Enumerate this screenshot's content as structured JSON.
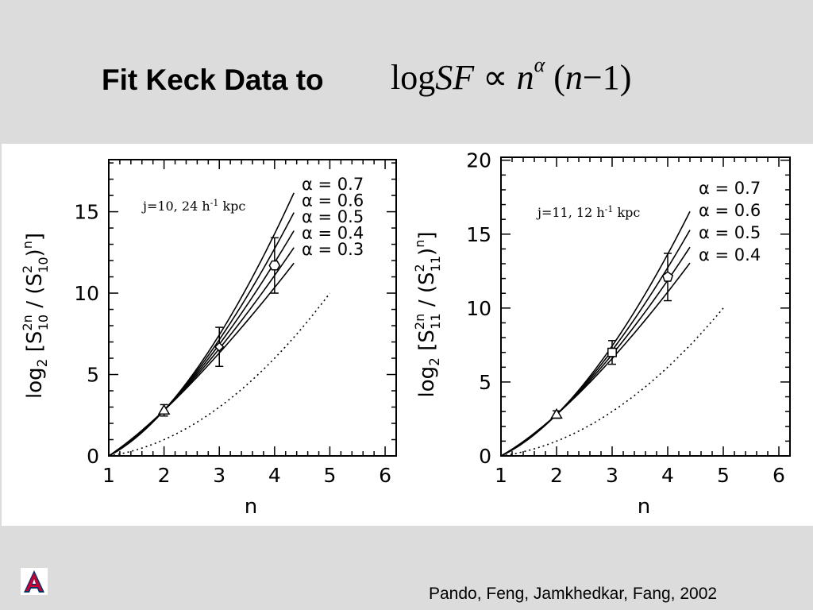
{
  "slide": {
    "title_text": "Fit Keck Data to",
    "formula": {
      "log": "log",
      "sf": "SF",
      "prop": "∝",
      "n": "n",
      "alpha": "α",
      "paren_open": "(",
      "n2": "n",
      "minus": "−",
      "one": "1",
      "paren_close": ")"
    },
    "citation": "Pando,  Feng, Jamkhedkar, Fang, 2002",
    "logo_letter": "A",
    "colors": {
      "background": "#dcdcdc",
      "panel": "#ffffff",
      "logo_red": "#cc0033",
      "logo_blue": "#003366"
    }
  },
  "chart_data": [
    {
      "type": "line",
      "annotation": {
        "prefix": "j=10, 24 h",
        "sup": "-1",
        "suffix": " kpc"
      },
      "xlabel": "n",
      "ylabel": {
        "fn": "log",
        "fn_sub": "2",
        "numerator": "S",
        "num_sup": "2n",
        "num_sub": "10",
        "denominator": "S",
        "den_sup": "2",
        "den_sub": "10",
        "den_outer_sup": "n"
      },
      "xlim": [
        1,
        6.2
      ],
      "ylim": [
        0,
        18.2
      ],
      "xticks": [
        1,
        2,
        3,
        4,
        5,
        6
      ],
      "yticks": [
        0,
        5,
        10,
        15
      ],
      "curve_x_end": 4.35,
      "series": [
        {
          "name": "α =  0.7",
          "alpha": 0.7
        },
        {
          "name": "α =  0.6",
          "alpha": 0.6
        },
        {
          "name": "α =  0.5",
          "alpha": 0.5
        },
        {
          "name": "α =  0.4",
          "alpha": 0.4
        },
        {
          "name": "α =  0.3",
          "alpha": 0.3
        }
      ],
      "reference_curve": {
        "style": "dotted",
        "x_end": 5.0,
        "y_end": 10.0
      },
      "data_points": [
        {
          "x": 2,
          "y": 2.8,
          "err": 0.35,
          "marker": "triangle"
        },
        {
          "x": 3,
          "y": 6.7,
          "err": 1.2,
          "marker": "diamond"
        },
        {
          "x": 4,
          "y": 11.7,
          "err": 1.7,
          "marker": "hexagon"
        }
      ]
    },
    {
      "type": "line",
      "annotation": {
        "prefix": "j=11, 12 h",
        "sup": "-1",
        "suffix": " kpc"
      },
      "xlabel": "n",
      "ylabel": {
        "fn": "log",
        "fn_sub": "2",
        "numerator": "S",
        "num_sup": "2n",
        "num_sub": "11",
        "denominator": "S",
        "den_sup": "2",
        "den_sub": "11",
        "den_outer_sup": "n"
      },
      "xlim": [
        1,
        6.2
      ],
      "ylim": [
        0,
        20.2
      ],
      "xticks": [
        1,
        2,
        3,
        4,
        5,
        6
      ],
      "yticks": [
        0,
        5,
        10,
        15,
        20
      ],
      "curve_x_end": 4.4,
      "series": [
        {
          "name": "α =  0.7",
          "alpha": 0.7
        },
        {
          "name": "α =  0.6",
          "alpha": 0.6
        },
        {
          "name": "α =  0.5",
          "alpha": 0.5
        },
        {
          "name": "α =  0.4",
          "alpha": 0.4
        }
      ],
      "reference_curve": {
        "style": "dotted",
        "x_end": 5.0,
        "y_end": 10.0
      },
      "data_points": [
        {
          "x": 2,
          "y": 2.8,
          "err": 0.25,
          "marker": "triangle"
        },
        {
          "x": 3,
          "y": 7.0,
          "err": 0.8,
          "marker": "square"
        },
        {
          "x": 4,
          "y": 12.1,
          "err": 1.6,
          "marker": "pentagon"
        }
      ]
    }
  ]
}
